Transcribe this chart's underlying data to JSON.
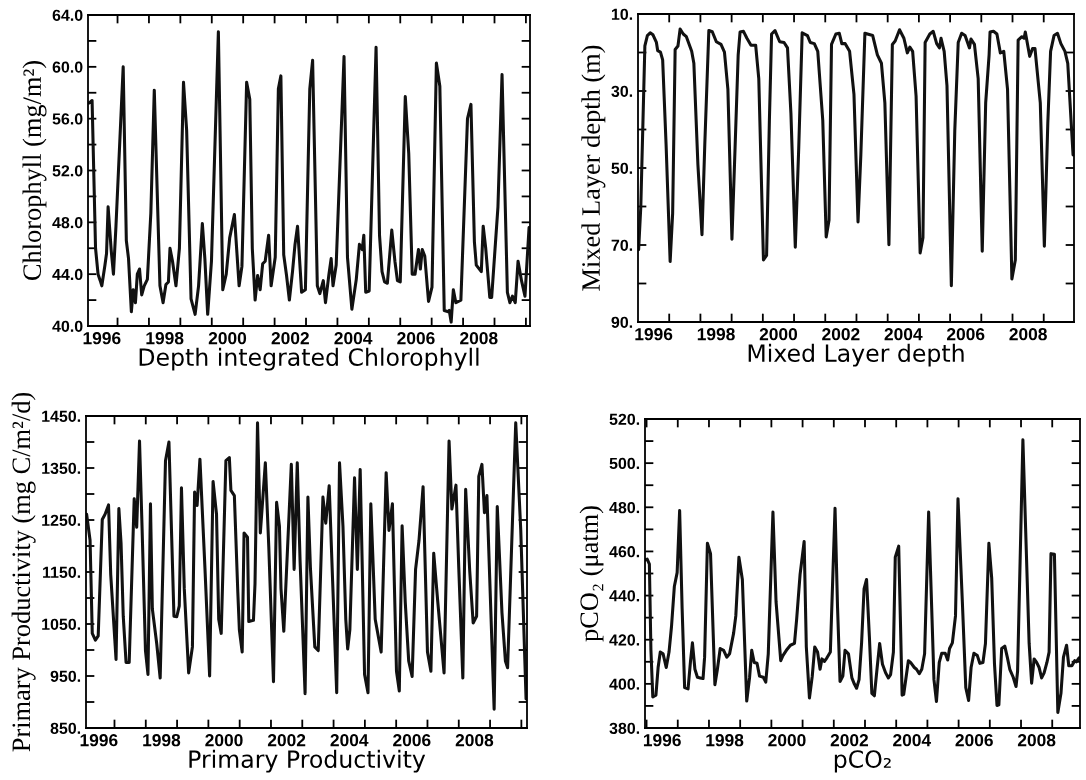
{
  "chart_data": [
    {
      "type": "line",
      "xlabel": "Depth integrated Chlorophyll",
      "ylabel": "Chlorophyll (mg/m²)",
      "color": "#111111",
      "grid": false,
      "xlim": [
        1996.06,
        2010.13
      ],
      "ylim": [
        40,
        64
      ],
      "xticks": [
        {
          "value": 1996.5,
          "label": "1996"
        },
        {
          "value": 1998.5,
          "label": "1998"
        },
        {
          "value": 2000.5,
          "label": "2000"
        },
        {
          "value": 2002.5,
          "label": "2002"
        },
        {
          "value": 2004.5,
          "label": "2004"
        },
        {
          "value": 2006.5,
          "label": "2006"
        },
        {
          "value": 2008.5,
          "label": "2008"
        },
        {
          "value": 1997,
          "label": null
        },
        {
          "value": 1998,
          "label": null
        },
        {
          "value": 1999,
          "label": null
        },
        {
          "value": 2000,
          "label": null
        },
        {
          "value": 2001,
          "label": null
        },
        {
          "value": 2002,
          "label": null
        },
        {
          "value": 2003,
          "label": null
        },
        {
          "value": 2004,
          "label": null
        },
        {
          "value": 2005,
          "label": null
        },
        {
          "value": 2006,
          "label": null
        },
        {
          "value": 2007,
          "label": null
        },
        {
          "value": 2008,
          "label": null
        },
        {
          "value": 2009,
          "label": null
        },
        {
          "value": 2010,
          "label": null
        }
      ],
      "yticks": [
        {
          "value": 40,
          "label": "40.0"
        },
        {
          "value": 44,
          "label": "44.0"
        },
        {
          "value": 48,
          "label": "48.0"
        },
        {
          "value": 52,
          "label": "52.0"
        },
        {
          "value": 56,
          "label": "56.0"
        },
        {
          "value": 60,
          "label": "60.0"
        },
        {
          "value": 64,
          "label": "64.0"
        },
        {
          "value": 42,
          "label": null
        },
        {
          "value": 46,
          "label": null
        },
        {
          "value": 50,
          "label": null
        },
        {
          "value": 54,
          "label": null
        },
        {
          "value": 58,
          "label": null
        },
        {
          "value": 62,
          "label": null
        }
      ],
      "x": [
        1996.09,
        1996.19,
        1996.3,
        1996.38,
        1996.45,
        1996.5,
        1996.6,
        1996.65,
        1996.7,
        1996.8,
        1996.87,
        1996.95,
        1997.18,
        1997.28,
        1997.35,
        1997.44,
        1997.5,
        1997.57,
        1997.63,
        1997.7,
        1997.77,
        1997.85,
        1997.95,
        1998.06,
        1998.17,
        1998.26,
        1998.35,
        1998.45,
        1998.54,
        1998.62,
        1998.67,
        1998.75,
        1998.86,
        1998.97,
        1999.1,
        1999.2,
        1999.34,
        1999.47,
        1999.58,
        1999.7,
        1999.78,
        1999.87,
        1999.99,
        2000.21,
        2000.35,
        2000.46,
        2000.57,
        2000.72,
        2000.87,
        2000.96,
        2001.11,
        2001.21,
        2001.29,
        2001.38,
        2001.46,
        2001.54,
        2001.62,
        2001.7,
        2001.81,
        2001.89,
        2002.02,
        2002.12,
        2002.2,
        2002.29,
        2002.38,
        2002.47,
        2002.57,
        2002.65,
        2002.73,
        2002.86,
        2002.98,
        2003.12,
        2003.21,
        2003.36,
        2003.44,
        2003.55,
        2003.62,
        2003.73,
        2003.8,
        2003.86,
        2003.96,
        2004.1,
        2004.21,
        2004.32,
        2004.46,
        2004.6,
        2004.7,
        2004.79,
        2004.84,
        2004.9,
        2005.01,
        2005.23,
        2005.34,
        2005.42,
        2005.5,
        2005.59,
        2005.73,
        2005.83,
        2005.91,
        2006.0,
        2006.16,
        2006.27,
        2006.38,
        2006.47,
        2006.58,
        2006.64,
        2006.7,
        2006.78,
        2006.9,
        2007.01,
        2007.15,
        2007.26,
        2007.4,
        2007.53,
        2007.56,
        2007.62,
        2007.69,
        2007.77,
        2007.93,
        2008.14,
        2008.25,
        2008.36,
        2008.42,
        2008.58,
        2008.64,
        2008.72,
        2008.85,
        2008.91,
        2009.11,
        2009.24,
        2009.41,
        2009.49,
        2009.57,
        2009.66,
        2009.75,
        2009.86,
        2009.97,
        2010.1
      ],
      "values": [
        57.2,
        57.4,
        46.0,
        44.0,
        43.5,
        43.1,
        44.7,
        45.6,
        49.2,
        45.8,
        44.0,
        47.7,
        60.0,
        46.6,
        45.2,
        41.1,
        42.8,
        41.8,
        44.0,
        44.4,
        42.4,
        43.1,
        43.6,
        48.7,
        58.2,
        50.6,
        43.1,
        41.8,
        43.2,
        43.4,
        46.0,
        45.0,
        43.1,
        46.0,
        58.8,
        55.1,
        42.1,
        40.9,
        43.1,
        47.9,
        45.2,
        40.9,
        45.0,
        62.7,
        42.8,
        44.0,
        46.8,
        48.6,
        43.1,
        44.6,
        58.8,
        57.5,
        46.0,
        42.0,
        43.9,
        42.8,
        44.8,
        45.0,
        47.0,
        43.1,
        45.3,
        58.3,
        59.3,
        45.5,
        43.9,
        42.0,
        44.2,
        46.3,
        47.7,
        42.6,
        42.8,
        58.3,
        60.5,
        43.1,
        42.5,
        43.5,
        41.8,
        44.0,
        45.2,
        43.1,
        44.7,
        53.7,
        60.8,
        45.3,
        41.3,
        43.6,
        46.3,
        45.9,
        47.0,
        42.6,
        42.7,
        61.5,
        47.0,
        44.2,
        43.4,
        43.3,
        47.4,
        45.0,
        43.5,
        43.4,
        57.7,
        53.3,
        44.0,
        44.0,
        45.9,
        44.4,
        45.9,
        45.4,
        41.9,
        43.0,
        60.3,
        58.5,
        41.2,
        41.1,
        41.2,
        40.3,
        42.8,
        41.8,
        42.0,
        56.0,
        57.1,
        46.5,
        44.7,
        44.2,
        47.7,
        46.0,
        42.2,
        42.2,
        49.2,
        59.4,
        42.6,
        41.8,
        42.3,
        41.8,
        45.0,
        43.5,
        42.3,
        47.6
      ]
    },
    {
      "type": "line",
      "xlabel": "Mixed Layer depth",
      "ylabel": "Mixed Layer depth (m)",
      "color": "#111111",
      "grid": false,
      "xlim": [
        1996.0,
        2009.97
      ],
      "ylim": [
        90,
        10
      ],
      "xticks": [
        {
          "value": 1996.5,
          "label": "1996"
        },
        {
          "value": 1998.5,
          "label": "1998"
        },
        {
          "value": 2000.5,
          "label": "2000"
        },
        {
          "value": 2002.5,
          "label": "2002"
        },
        {
          "value": 2004.5,
          "label": "2004"
        },
        {
          "value": 2006.5,
          "label": "2006"
        },
        {
          "value": 2008.5,
          "label": "2008"
        },
        {
          "value": 1997,
          "label": null
        },
        {
          "value": 1998,
          "label": null
        },
        {
          "value": 1999,
          "label": null
        },
        {
          "value": 2000,
          "label": null
        },
        {
          "value": 2001,
          "label": null
        },
        {
          "value": 2002,
          "label": null
        },
        {
          "value": 2003,
          "label": null
        },
        {
          "value": 2004,
          "label": null
        },
        {
          "value": 2005,
          "label": null
        },
        {
          "value": 2006,
          "label": null
        },
        {
          "value": 2007,
          "label": null
        },
        {
          "value": 2008,
          "label": null
        },
        {
          "value": 2009,
          "label": null
        }
      ],
      "yticks": [
        {
          "value": 10,
          "label": "10."
        },
        {
          "value": 30,
          "label": "30."
        },
        {
          "value": 50,
          "label": "50."
        },
        {
          "value": 70,
          "label": "70."
        },
        {
          "value": 90,
          "label": "90."
        },
        {
          "value": 20,
          "label": null
        },
        {
          "value": 40,
          "label": null
        },
        {
          "value": 60,
          "label": null
        },
        {
          "value": 80,
          "label": null
        }
      ],
      "x": [
        1996.02,
        1996.09,
        1996.22,
        1996.3,
        1996.39,
        1996.48,
        1996.59,
        1996.63,
        1996.72,
        1996.79,
        1996.9,
        1997.03,
        1997.11,
        1997.19,
        1997.28,
        1997.35,
        1997.45,
        1997.55,
        1997.72,
        1997.79,
        1997.92,
        1998.05,
        1998.14,
        1998.27,
        1998.38,
        1998.51,
        1998.66,
        1998.77,
        1998.88,
        1999.01,
        1999.11,
        1999.21,
        1999.27,
        1999.38,
        1999.49,
        1999.62,
        1999.77,
        1999.87,
        2000.02,
        2000.12,
        2000.21,
        2000.28,
        2000.39,
        2000.54,
        2000.68,
        2000.79,
        2000.9,
        2001.04,
        2001.15,
        2001.26,
        2001.43,
        2001.52,
        2001.65,
        2001.76,
        2001.92,
        2002.03,
        2002.12,
        2002.2,
        2002.34,
        2002.45,
        2002.53,
        2002.64,
        2002.78,
        2002.92,
        2003.05,
        2003.14,
        2003.27,
        2003.52,
        2003.67,
        2003.8,
        2003.91,
        2004.04,
        2004.15,
        2004.24,
        2004.38,
        2004.52,
        2004.63,
        2004.71,
        2004.8,
        2004.91,
        2005.04,
        2005.13,
        2005.2,
        2005.35,
        2005.46,
        2005.57,
        2005.66,
        2005.71,
        2005.81,
        2005.9,
        2006.04,
        2006.15,
        2006.26,
        2006.37,
        2006.48,
        2006.62,
        2006.67,
        2006.78,
        2006.9,
        2007.03,
        2007.14,
        2007.25,
        2007.28,
        2007.39,
        2007.5,
        2007.61,
        2007.72,
        2007.84,
        2007.98,
        2008.09,
        2008.18,
        2008.3,
        2008.37,
        2008.41,
        2008.55,
        2008.64,
        2008.72,
        2008.89,
        2009.02,
        2009.13,
        2009.22,
        2009.33,
        2009.44,
        2009.55,
        2009.68,
        2009.77,
        2009.94
      ],
      "values": [
        71.2,
        60.0,
        18.3,
        15.6,
        14.9,
        15.4,
        17.4,
        19.5,
        19.9,
        21.9,
        43.9,
        74.3,
        61.8,
        19.2,
        18.3,
        13.9,
        15.2,
        15.9,
        19.7,
        22.8,
        49.2,
        67.3,
        43.9,
        14.3,
        14.6,
        17.2,
        17.9,
        19.9,
        29.5,
        68.5,
        44.8,
        20.6,
        14.7,
        14.5,
        16.3,
        18.1,
        18.1,
        26.8,
        73.9,
        72.7,
        37.6,
        15.2,
        14.3,
        17.2,
        17.4,
        18.8,
        35.8,
        70.6,
        44.8,
        14.9,
        15.6,
        17.4,
        17.7,
        19.7,
        37.6,
        67.9,
        63.6,
        17.9,
        15.2,
        15.0,
        17.7,
        17.7,
        19.7,
        30.9,
        64.0,
        46.6,
        15.0,
        15.6,
        20.6,
        22.8,
        33.1,
        69.9,
        17.9,
        17.0,
        14.1,
        16.3,
        20.1,
        18.6,
        19.7,
        31.3,
        72.1,
        68.1,
        17.4,
        15.2,
        14.5,
        17.7,
        18.8,
        16.3,
        19.7,
        28.6,
        80.6,
        40.3,
        17.4,
        15.0,
        15.6,
        18.8,
        16.5,
        17.9,
        26.8,
        71.6,
        33.1,
        20.6,
        14.7,
        14.5,
        15.2,
        20.1,
        19.7,
        29.5,
        78.8,
        73.9,
        16.8,
        15.9,
        16.3,
        14.7,
        21.0,
        19.0,
        19.0,
        33.1,
        70.3,
        38.5,
        19.7,
        15.6,
        15.0,
        17.7,
        19.7,
        22.8,
        46.6
      ]
    },
    {
      "type": "line",
      "xlabel": "Primary Productivity",
      "ylabel": "Primary Productivity (mg C/m²/d)",
      "color": "#111111",
      "grid": false,
      "xlim": [
        1996.09,
        2010.18
      ],
      "ylim": [
        850,
        1450
      ],
      "xticks": [
        {
          "value": 1996.5,
          "label": "1996"
        },
        {
          "value": 1998.5,
          "label": "1998"
        },
        {
          "value": 2000.5,
          "label": "2000"
        },
        {
          "value": 2002.5,
          "label": "2002"
        },
        {
          "value": 2004.5,
          "label": "2004"
        },
        {
          "value": 2006.5,
          "label": "2006"
        },
        {
          "value": 2008.5,
          "label": "2008"
        },
        {
          "value": 1997,
          "label": null
        },
        {
          "value": 1998,
          "label": null
        },
        {
          "value": 1999,
          "label": null
        },
        {
          "value": 2000,
          "label": null
        },
        {
          "value": 2001,
          "label": null
        },
        {
          "value": 2002,
          "label": null
        },
        {
          "value": 2003,
          "label": null
        },
        {
          "value": 2004,
          "label": null
        },
        {
          "value": 2005,
          "label": null
        },
        {
          "value": 2006,
          "label": null
        },
        {
          "value": 2007,
          "label": null
        },
        {
          "value": 2008,
          "label": null
        },
        {
          "value": 2009,
          "label": null
        },
        {
          "value": 2010,
          "label": null
        }
      ],
      "yticks": [
        {
          "value": 850,
          "label": "850."
        },
        {
          "value": 950,
          "label": "950."
        },
        {
          "value": 1050,
          "label": "1050."
        },
        {
          "value": 1150,
          "label": "1150."
        },
        {
          "value": 1250,
          "label": "1250."
        },
        {
          "value": 1350,
          "label": "1350."
        },
        {
          "value": 1450,
          "label": "1450."
        },
        {
          "value": 900,
          "label": null
        },
        {
          "value": 1000,
          "label": null
        },
        {
          "value": 1100,
          "label": null
        },
        {
          "value": 1200,
          "label": null
        },
        {
          "value": 1300,
          "label": null
        },
        {
          "value": 1400,
          "label": null
        }
      ],
      "x": [
        1996.11,
        1996.22,
        1996.29,
        1996.39,
        1996.48,
        1996.61,
        1996.7,
        1996.81,
        1996.88,
        1997.05,
        1997.14,
        1997.21,
        1997.28,
        1997.37,
        1997.47,
        1997.63,
        1997.71,
        1997.8,
        1997.88,
        1997.99,
        1998.07,
        1998.15,
        1998.21,
        1998.35,
        1998.46,
        1998.63,
        1998.74,
        1998.9,
        1998.99,
        1999.07,
        1999.14,
        1999.23,
        1999.37,
        1999.49,
        1999.56,
        1999.64,
        1999.73,
        1999.89,
        2000.04,
        2000.15,
        2000.26,
        2000.33,
        2000.41,
        2000.56,
        2000.67,
        2000.72,
        2000.83,
        2000.94,
        2000.99,
        2001.08,
        2001.14,
        2001.25,
        2001.29,
        2001.44,
        2001.49,
        2001.57,
        2001.66,
        2001.82,
        2001.93,
        2002.08,
        2002.18,
        2002.27,
        2002.32,
        2002.41,
        2002.65,
        2002.74,
        2002.84,
        2002.93,
        2003.09,
        2003.18,
        2003.26,
        2003.4,
        2003.51,
        2003.66,
        2003.75,
        2003.86,
        2003.97,
        2004.1,
        2004.19,
        2004.3,
        2004.39,
        2004.45,
        2004.52,
        2004.67,
        2004.76,
        2004.85,
        2004.99,
        2005.1,
        2005.19,
        2005.33,
        2005.52,
        2005.68,
        2005.77,
        2005.88,
        2006.01,
        2006.1,
        2006.19,
        2006.29,
        2006.4,
        2006.51,
        2006.62,
        2006.73,
        2006.86,
        2007.0,
        2007.11,
        2007.2,
        2007.33,
        2007.53,
        2007.69,
        2007.78,
        2007.91,
        2008.0,
        2008.13,
        2008.22,
        2008.35,
        2008.46,
        2008.57,
        2008.64,
        2008.74,
        2008.82,
        2008.9,
        2009.13,
        2009.23,
        2009.38,
        2009.49,
        2009.56,
        2009.82,
        2009.98,
        2010.15
      ],
      "values": [
        1261,
        1211,
        1032,
        1019,
        1027,
        1251,
        1261,
        1279,
        1145,
        982,
        1272,
        1205,
        1065,
        976,
        976,
        1291,
        1236,
        1402,
        1238,
        999,
        953,
        1281,
        1079,
        1012,
        946,
        1364,
        1400,
        1065,
        1064,
        1085,
        1312,
        1118,
        956,
        1006,
        1304,
        1278,
        1367,
        1158,
        950,
        1324,
        1261,
        1059,
        1032,
        1364,
        1370,
        1307,
        1297,
        1112,
        1039,
        996,
        1225,
        1217,
        1055,
        1057,
        1128,
        1437,
        1225,
        1360,
        1198,
        939,
        1284,
        1238,
        1118,
        1036,
        1357,
        1155,
        1360,
        1171,
        916,
        1294,
        1158,
        1006,
        999,
        1294,
        1244,
        1316,
        1132,
        918,
        1360,
        1238,
        1059,
        1002,
        1039,
        1331,
        1155,
        1347,
        953,
        918,
        1281,
        1059,
        996,
        1341,
        1230,
        1281,
        959,
        921,
        1239,
        1092,
        979,
        949,
        1155,
        1211,
        1314,
        996,
        959,
        1186,
        1092,
        956,
        1402,
        1271,
        1317,
        1158,
        946,
        1309,
        1152,
        1052,
        1065,
        1334,
        1357,
        1264,
        1297,
        886,
        1276,
        1072,
        979,
        966,
        1437,
        1231,
        906
      ]
    },
    {
      "type": "line",
      "xlabel": "pCO₂",
      "ylabel": "pCO₂ (μatm)",
      "color": "#111111",
      "grid": false,
      "xlim": [
        1995.95,
        2009.89
      ],
      "ylim": [
        380,
        520
      ],
      "xticks": [
        {
          "value": 1996.5,
          "label": "1996"
        },
        {
          "value": 1998.5,
          "label": "1998"
        },
        {
          "value": 2000.5,
          "label": "2000"
        },
        {
          "value": 2002.5,
          "label": "2002"
        },
        {
          "value": 2004.5,
          "label": "2004"
        },
        {
          "value": 2006.5,
          "label": "2006"
        },
        {
          "value": 2008.5,
          "label": "2008"
        },
        {
          "value": 1996,
          "label": null
        },
        {
          "value": 1997,
          "label": null
        },
        {
          "value": 1998,
          "label": null
        },
        {
          "value": 1999,
          "label": null
        },
        {
          "value": 2000,
          "label": null
        },
        {
          "value": 2001,
          "label": null
        },
        {
          "value": 2002,
          "label": null
        },
        {
          "value": 2003,
          "label": null
        },
        {
          "value": 2004,
          "label": null
        },
        {
          "value": 2005,
          "label": null
        },
        {
          "value": 2006,
          "label": null
        },
        {
          "value": 2007,
          "label": null
        },
        {
          "value": 2008,
          "label": null
        },
        {
          "value": 2009,
          "label": null
        }
      ],
      "yticks": [
        {
          "value": 380,
          "label": "380."
        },
        {
          "value": 400,
          "label": "400."
        },
        {
          "value": 420,
          "label": "420."
        },
        {
          "value": 440,
          "label": "440."
        },
        {
          "value": 460,
          "label": "460."
        },
        {
          "value": 480,
          "label": "480."
        },
        {
          "value": 500,
          "label": "500."
        },
        {
          "value": 520,
          "label": "520."
        },
        {
          "value": 390,
          "label": null
        },
        {
          "value": 410,
          "label": null
        },
        {
          "value": 430,
          "label": null
        },
        {
          "value": 450,
          "label": null
        },
        {
          "value": 470,
          "label": null
        },
        {
          "value": 490,
          "label": null
        },
        {
          "value": 510,
          "label": null
        }
      ],
      "x": [
        1995.96,
        1996.02,
        1996.09,
        1996.14,
        1996.2,
        1996.3,
        1996.37,
        1996.44,
        1996.53,
        1996.63,
        1996.72,
        1996.8,
        1996.89,
        1996.98,
        1997.06,
        1997.14,
        1997.22,
        1997.33,
        1997.41,
        1997.47,
        1997.55,
        1997.63,
        1997.72,
        1997.81,
        1997.86,
        1997.95,
        1998.05,
        1998.19,
        1998.27,
        1998.36,
        1998.47,
        1998.57,
        1998.66,
        1998.79,
        1998.86,
        1998.96,
        1999.07,
        1999.21,
        1999.3,
        1999.37,
        1999.45,
        1999.54,
        1999.62,
        1999.74,
        1999.82,
        1999.9,
        2000.05,
        2000.15,
        2000.3,
        2000.37,
        2000.48,
        2000.61,
        2000.74,
        2000.81,
        2000.92,
        2001.05,
        2001.12,
        2001.22,
        2001.31,
        2001.39,
        2001.48,
        2001.56,
        2001.62,
        2001.7,
        2001.78,
        2001.89,
        2002.04,
        2002.12,
        2002.2,
        2002.29,
        2002.36,
        2002.47,
        2002.58,
        2002.66,
        2002.73,
        2002.81,
        2002.89,
        2002.97,
        2003.05,
        2003.14,
        2003.22,
        2003.3,
        2003.39,
        2003.47,
        2003.56,
        2003.66,
        2003.75,
        2003.82,
        2003.91,
        2003.97,
        2004.08,
        2004.19,
        2004.24,
        2004.39,
        2004.46,
        2004.58,
        2004.65,
        2004.74,
        2004.82,
        2004.91,
        2005.04,
        2005.21,
        2005.29,
        2005.38,
        2005.46,
        2005.57,
        2005.65,
        2005.71,
        2005.8,
        2005.9,
        2005.98,
        2006.12,
        2006.23,
        2006.32,
        2006.4,
        2006.49,
        2006.6,
        2006.68,
        2006.78,
        2006.86,
        2006.97,
        2007.06,
        2007.15,
        2007.23,
        2007.29,
        2007.38,
        2007.48,
        2007.56,
        2007.64,
        2007.75,
        2007.84,
        2007.89,
        2008.06,
        2008.26,
        2008.34,
        2008.42,
        2008.5,
        2008.58,
        2008.66,
        2008.74,
        2008.83,
        2008.9,
        2008.96,
        2009.07,
        2009.18,
        2009.28,
        2009.36,
        2009.46,
        2009.53,
        2009.63,
        2009.72,
        2009.77,
        2009.86
      ],
      "values": [
        456.2,
        456.5,
        454.3,
        415.2,
        394.1,
        394.9,
        407.4,
        414.4,
        413.6,
        407.4,
        414.4,
        426.1,
        444.1,
        450.4,
        478.5,
        434.0,
        398.3,
        397.7,
        410.5,
        418.6,
        406.6,
        403.0,
        402.7,
        402.4,
        412.1,
        463.7,
        459.0,
        399.6,
        406.6,
        416.0,
        415.2,
        412.1,
        413.6,
        423.0,
        430.8,
        457.4,
        447.3,
        392.2,
        402.7,
        415.2,
        409.7,
        409.3,
        403.5,
        403.0,
        400.8,
        413.6,
        477.8,
        437.1,
        410.5,
        412.8,
        415.2,
        417.5,
        418.3,
        429.3,
        449.6,
        464.5,
        416.7,
        393.6,
        403.5,
        416.7,
        414.4,
        406.6,
        411.3,
        410.2,
        411.8,
        414.4,
        479.6,
        434.7,
        401.1,
        403.5,
        415.2,
        413.6,
        402.7,
        399.9,
        398.0,
        401.9,
        418.3,
        443.0,
        447.3,
        421.5,
        395.7,
        394.6,
        407.4,
        418.3,
        408.9,
        405.0,
        402.7,
        404.2,
        414.4,
        457.4,
        462.4,
        394.9,
        395.2,
        410.5,
        409.7,
        407.4,
        406.6,
        404.6,
        406.6,
        413.6,
        477.8,
        401.9,
        392.0,
        409.7,
        413.9,
        413.9,
        410.8,
        416.0,
        418.6,
        430.8,
        483.9,
        437.1,
        398.3,
        392.5,
        407.4,
        413.9,
        412.8,
        409.3,
        409.7,
        418.3,
        463.7,
        448.0,
        408.9,
        390.2,
        390.5,
        416.0,
        417.1,
        412.1,
        406.6,
        403.0,
        398.8,
        405.8,
        510.6,
        418.3,
        400.3,
        411.3,
        409.7,
        407.4,
        402.7,
        405.0,
        409.7,
        414.4,
        459.0,
        458.7,
        387.0,
        395.7,
        412.1,
        417.5,
        408.2,
        408.2,
        410.5,
        410.0,
        411.8
      ]
    }
  ]
}
